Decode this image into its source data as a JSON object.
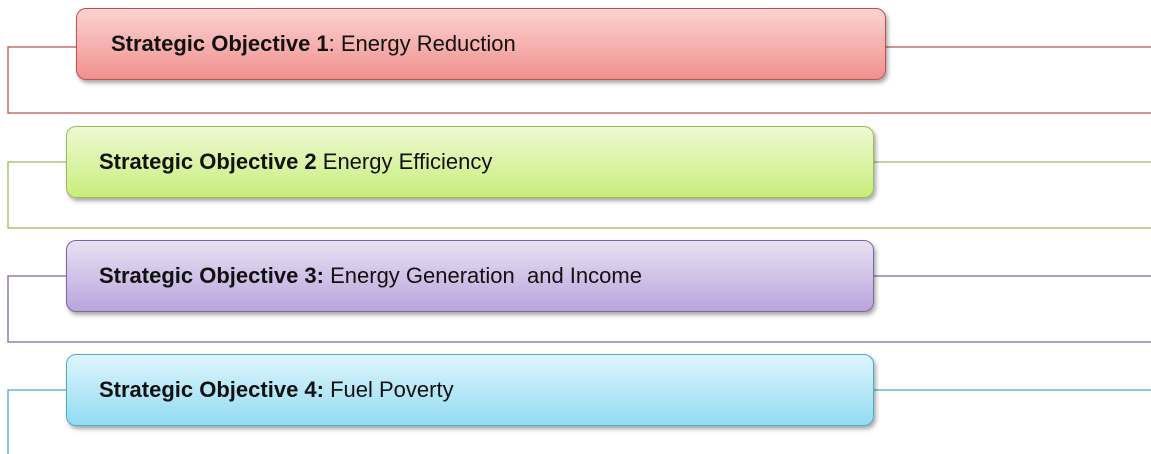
{
  "objectives": [
    {
      "label": "Strategic Objective 1",
      "text": ": Energy Reduction"
    },
    {
      "label": "Strategic Objective 2",
      "text": " Energy Efficiency"
    },
    {
      "label": "Strategic Objective 3:",
      "text": " Energy Generation  and Income"
    },
    {
      "label": "Strategic Objective 4:",
      "text": " Fuel Poverty"
    }
  ]
}
